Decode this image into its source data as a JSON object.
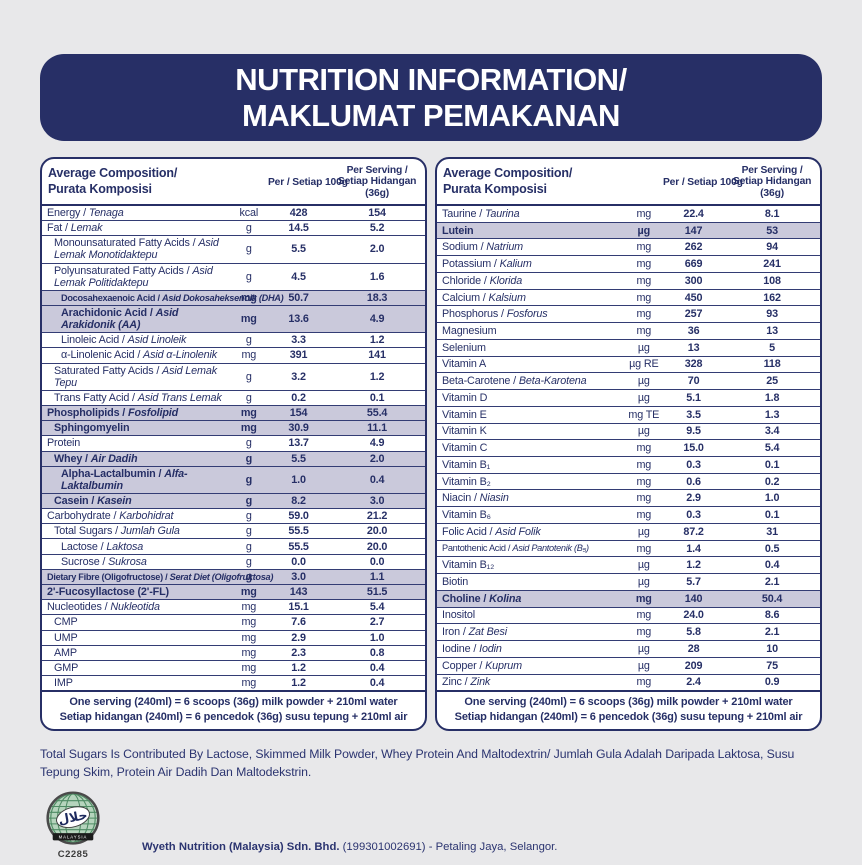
{
  "colors": {
    "navy": "#272f66",
    "row_shade": "#cac9db",
    "page_bg": "#e8e8ea",
    "halal_green": "#b5d4bc"
  },
  "header": {
    "title_line1": "NUTRITION INFORMATION/",
    "title_line2": "MAKLUMAT PEMAKANAN"
  },
  "table_header": {
    "name_line1": "Average Composition/",
    "name_line2": "Purata Komposisi",
    "col_per100": "Per / Setiap 100g",
    "col_serving_line1": "Per Serving /",
    "col_serving_line2": "Setiap Hidangan",
    "col_serving_line3": "(36g)"
  },
  "serving_note": {
    "line1": "One serving (240ml) = 6 scoops (36g) milk powder + 210ml water",
    "line2": "Setiap hidangan (240ml) = 6 pencedok (36g) susu tepung + 210ml air"
  },
  "left_table": {
    "rows": [
      {
        "label": "Energy / Tenaga",
        "unit": "kcal",
        "v100": "428",
        "vsrv": "154",
        "indent": 0,
        "shaded": false
      },
      {
        "label": "Fat / Lemak",
        "unit": "g",
        "v100": "14.5",
        "vsrv": "5.2",
        "indent": 0,
        "shaded": false
      },
      {
        "label": "Monounsaturated Fatty Acids / Asid Lemak Monotidaktepu",
        "unit": "g",
        "v100": "5.5",
        "vsrv": "2.0",
        "indent": 1,
        "shaded": false
      },
      {
        "label": "Polyunsaturated Fatty Acids / Asid Lemak Politidaktepu",
        "unit": "g",
        "v100": "4.5",
        "vsrv": "1.6",
        "indent": 1,
        "shaded": false
      },
      {
        "label": "Docosahexaenoic Acid / Asid Dokosaheksenoik (DHA)",
        "unit": "mg",
        "v100": "50.7",
        "vsrv": "18.3",
        "indent": 2,
        "shaded": true,
        "fit": true
      },
      {
        "label": "Arachidonic Acid / Asid Arakidonik (AA)",
        "unit": "mg",
        "v100": "13.6",
        "vsrv": "4.9",
        "indent": 2,
        "shaded": true
      },
      {
        "label": "Linoleic Acid / Asid Linoleik",
        "unit": "g",
        "v100": "3.3",
        "vsrv": "1.2",
        "indent": 2,
        "shaded": false
      },
      {
        "label": "α-Linolenic Acid / Asid α-Linolenik",
        "unit": "mg",
        "v100": "391",
        "vsrv": "141",
        "indent": 2,
        "shaded": false
      },
      {
        "label": "Saturated Fatty Acids / Asid Lemak Tepu",
        "unit": "g",
        "v100": "3.2",
        "vsrv": "1.2",
        "indent": 1,
        "shaded": false
      },
      {
        "label": "Trans Fatty Acid / Asid Trans Lemak",
        "unit": "g",
        "v100": "0.2",
        "vsrv": "0.1",
        "indent": 1,
        "shaded": false
      },
      {
        "label": "Phospholipids / Fosfolipid",
        "unit": "mg",
        "v100": "154",
        "vsrv": "55.4",
        "indent": 0,
        "shaded": true
      },
      {
        "label": "Sphingomyelin",
        "unit": "mg",
        "v100": "30.9",
        "vsrv": "11.1",
        "indent": 1,
        "shaded": true
      },
      {
        "label": "Protein",
        "unit": "g",
        "v100": "13.7",
        "vsrv": "4.9",
        "indent": 0,
        "shaded": false
      },
      {
        "label": "Whey / Air Dadih",
        "unit": "g",
        "v100": "5.5",
        "vsrv": "2.0",
        "indent": 1,
        "shaded": true
      },
      {
        "label": "Alpha-Lactalbumin / Alfa-Laktalbumin",
        "unit": "g",
        "v100": "1.0",
        "vsrv": "0.4",
        "indent": 2,
        "shaded": true
      },
      {
        "label": "Casein / Kasein",
        "unit": "g",
        "v100": "8.2",
        "vsrv": "3.0",
        "indent": 1,
        "shaded": true
      },
      {
        "label": "Carbohydrate / Karbohidrat",
        "unit": "g",
        "v100": "59.0",
        "vsrv": "21.2",
        "indent": 0,
        "shaded": false
      },
      {
        "label": "Total Sugars / Jumlah Gula",
        "unit": "g",
        "v100": "55.5",
        "vsrv": "20.0",
        "indent": 1,
        "shaded": false
      },
      {
        "label": "Lactose / Laktosa",
        "unit": "g",
        "v100": "55.5",
        "vsrv": "20.0",
        "indent": 2,
        "shaded": false
      },
      {
        "label": "Sucrose / Sukrosa",
        "unit": "g",
        "v100": "0.0",
        "vsrv": "0.0",
        "indent": 2,
        "shaded": false
      },
      {
        "label": "Dietary Fibre (Oligofructose) / Serat Diet (Oligofruktosa)",
        "unit": "g",
        "v100": "3.0",
        "vsrv": "1.1",
        "indent": 0,
        "shaded": true,
        "fit": true
      },
      {
        "label": "2'-Fucosyllactose (2'-FL)",
        "unit": "mg",
        "v100": "143",
        "vsrv": "51.5",
        "indent": 0,
        "shaded": true
      },
      {
        "label": "Nucleotides / Nukleotida",
        "unit": "mg",
        "v100": "15.1",
        "vsrv": "5.4",
        "indent": 0,
        "shaded": false
      },
      {
        "label": "CMP",
        "unit": "mg",
        "v100": "7.6",
        "vsrv": "2.7",
        "indent": 1,
        "shaded": false
      },
      {
        "label": "UMP",
        "unit": "mg",
        "v100": "2.9",
        "vsrv": "1.0",
        "indent": 1,
        "shaded": false
      },
      {
        "label": "AMP",
        "unit": "mg",
        "v100": "2.3",
        "vsrv": "0.8",
        "indent": 1,
        "shaded": false
      },
      {
        "label": "GMP",
        "unit": "mg",
        "v100": "1.2",
        "vsrv": "0.4",
        "indent": 1,
        "shaded": false
      },
      {
        "label": "IMP",
        "unit": "mg",
        "v100": "1.2",
        "vsrv": "0.4",
        "indent": 1,
        "shaded": false
      }
    ]
  },
  "right_table": {
    "rows": [
      {
        "label": "Taurine / Taurina",
        "unit": "mg",
        "v100": "22.4",
        "vsrv": "8.1",
        "indent": 0,
        "shaded": false
      },
      {
        "label": "Lutein",
        "unit": "µg",
        "v100": "147",
        "vsrv": "53",
        "indent": 0,
        "shaded": true
      },
      {
        "label": "Sodium / Natrium",
        "unit": "mg",
        "v100": "262",
        "vsrv": "94",
        "indent": 0,
        "shaded": false
      },
      {
        "label": "Potassium / Kalium",
        "unit": "mg",
        "v100": "669",
        "vsrv": "241",
        "indent": 0,
        "shaded": false
      },
      {
        "label": "Chloride / Klorida",
        "unit": "mg",
        "v100": "300",
        "vsrv": "108",
        "indent": 0,
        "shaded": false
      },
      {
        "label": "Calcium / Kalsium",
        "unit": "mg",
        "v100": "450",
        "vsrv": "162",
        "indent": 0,
        "shaded": false
      },
      {
        "label": "Phosphorus / Fosforus",
        "unit": "mg",
        "v100": "257",
        "vsrv": "93",
        "indent": 0,
        "shaded": false
      },
      {
        "label": "Magnesium",
        "unit": "mg",
        "v100": "36",
        "vsrv": "13",
        "indent": 0,
        "shaded": false
      },
      {
        "label": "Selenium",
        "unit": "µg",
        "v100": "13",
        "vsrv": "5",
        "indent": 0,
        "shaded": false
      },
      {
        "label": "Vitamin A",
        "unit": "µg RE",
        "v100": "328",
        "vsrv": "118",
        "indent": 0,
        "shaded": false
      },
      {
        "label": "Beta-Carotene / Beta-Karotena",
        "unit": "µg",
        "v100": "70",
        "vsrv": "25",
        "indent": 0,
        "shaded": false
      },
      {
        "label": "Vitamin D",
        "unit": "µg",
        "v100": "5.1",
        "vsrv": "1.8",
        "indent": 0,
        "shaded": false
      },
      {
        "label": "Vitamin E",
        "unit": "mg TE",
        "v100": "3.5",
        "vsrv": "1.3",
        "indent": 0,
        "shaded": false
      },
      {
        "label": "Vitamin K",
        "unit": "µg",
        "v100": "9.5",
        "vsrv": "3.4",
        "indent": 0,
        "shaded": false
      },
      {
        "label": "Vitamin C",
        "unit": "mg",
        "v100": "15.0",
        "vsrv": "5.4",
        "indent": 0,
        "shaded": false
      },
      {
        "label": "Vitamin B₁",
        "unit": "mg",
        "v100": "0.3",
        "vsrv": "0.1",
        "indent": 0,
        "shaded": false
      },
      {
        "label": "Vitamin B₂",
        "unit": "mg",
        "v100": "0.6",
        "vsrv": "0.2",
        "indent": 0,
        "shaded": false
      },
      {
        "label": "Niacin / Niasin",
        "unit": "mg",
        "v100": "2.9",
        "vsrv": "1.0",
        "indent": 0,
        "shaded": false
      },
      {
        "label": "Vitamin B₆",
        "unit": "mg",
        "v100": "0.3",
        "vsrv": "0.1",
        "indent": 0,
        "shaded": false
      },
      {
        "label": "Folic Acid / Asid Folik",
        "unit": "µg",
        "v100": "87.2",
        "vsrv": "31",
        "indent": 0,
        "shaded": false
      },
      {
        "label": "Pantothenic Acid / Asid Pantotenik (B₅)",
        "unit": "mg",
        "v100": "1.4",
        "vsrv": "0.5",
        "indent": 0,
        "shaded": false,
        "fit": true
      },
      {
        "label": "Vitamin B₁₂",
        "unit": "µg",
        "v100": "1.2",
        "vsrv": "0.4",
        "indent": 0,
        "shaded": false
      },
      {
        "label": "Biotin",
        "unit": "µg",
        "v100": "5.7",
        "vsrv": "2.1",
        "indent": 0,
        "shaded": false
      },
      {
        "label": "Choline / Kolina",
        "unit": "mg",
        "v100": "140",
        "vsrv": "50.4",
        "indent": 0,
        "shaded": true
      },
      {
        "label": "Inositol",
        "unit": "mg",
        "v100": "24.0",
        "vsrv": "8.6",
        "indent": 0,
        "shaded": false
      },
      {
        "label": "Iron / Zat Besi",
        "unit": "mg",
        "v100": "5.8",
        "vsrv": "2.1",
        "indent": 0,
        "shaded": false
      },
      {
        "label": "Iodine / Iodin",
        "unit": "µg",
        "v100": "28",
        "vsrv": "10",
        "indent": 0,
        "shaded": false
      },
      {
        "label": "Copper / Kuprum",
        "unit": "µg",
        "v100": "209",
        "vsrv": "75",
        "indent": 0,
        "shaded": false
      },
      {
        "label": "Zinc / Zink",
        "unit": "mg",
        "v100": "2.4",
        "vsrv": "0.9",
        "indent": 0,
        "shaded": false
      }
    ]
  },
  "disclaimer": "Total Sugars Is Contributed By Lactose, Skimmed Milk Powder, Whey Protein And Maltodextrin/ Jumlah Gula Adalah Daripada Laktosa, Susu Tepung Skim, Protein Air Dadih Dan Maltodekstrin.",
  "footer": {
    "halal_arabic": "حلال",
    "halal_band": "MALAYSIA",
    "halal_code": "C2285",
    "company_bold": "Wyeth Nutrition (Malaysia) Sdn. Bhd.",
    "company_rest": " (199301002691) - Petaling Jaya, Selangor."
  }
}
